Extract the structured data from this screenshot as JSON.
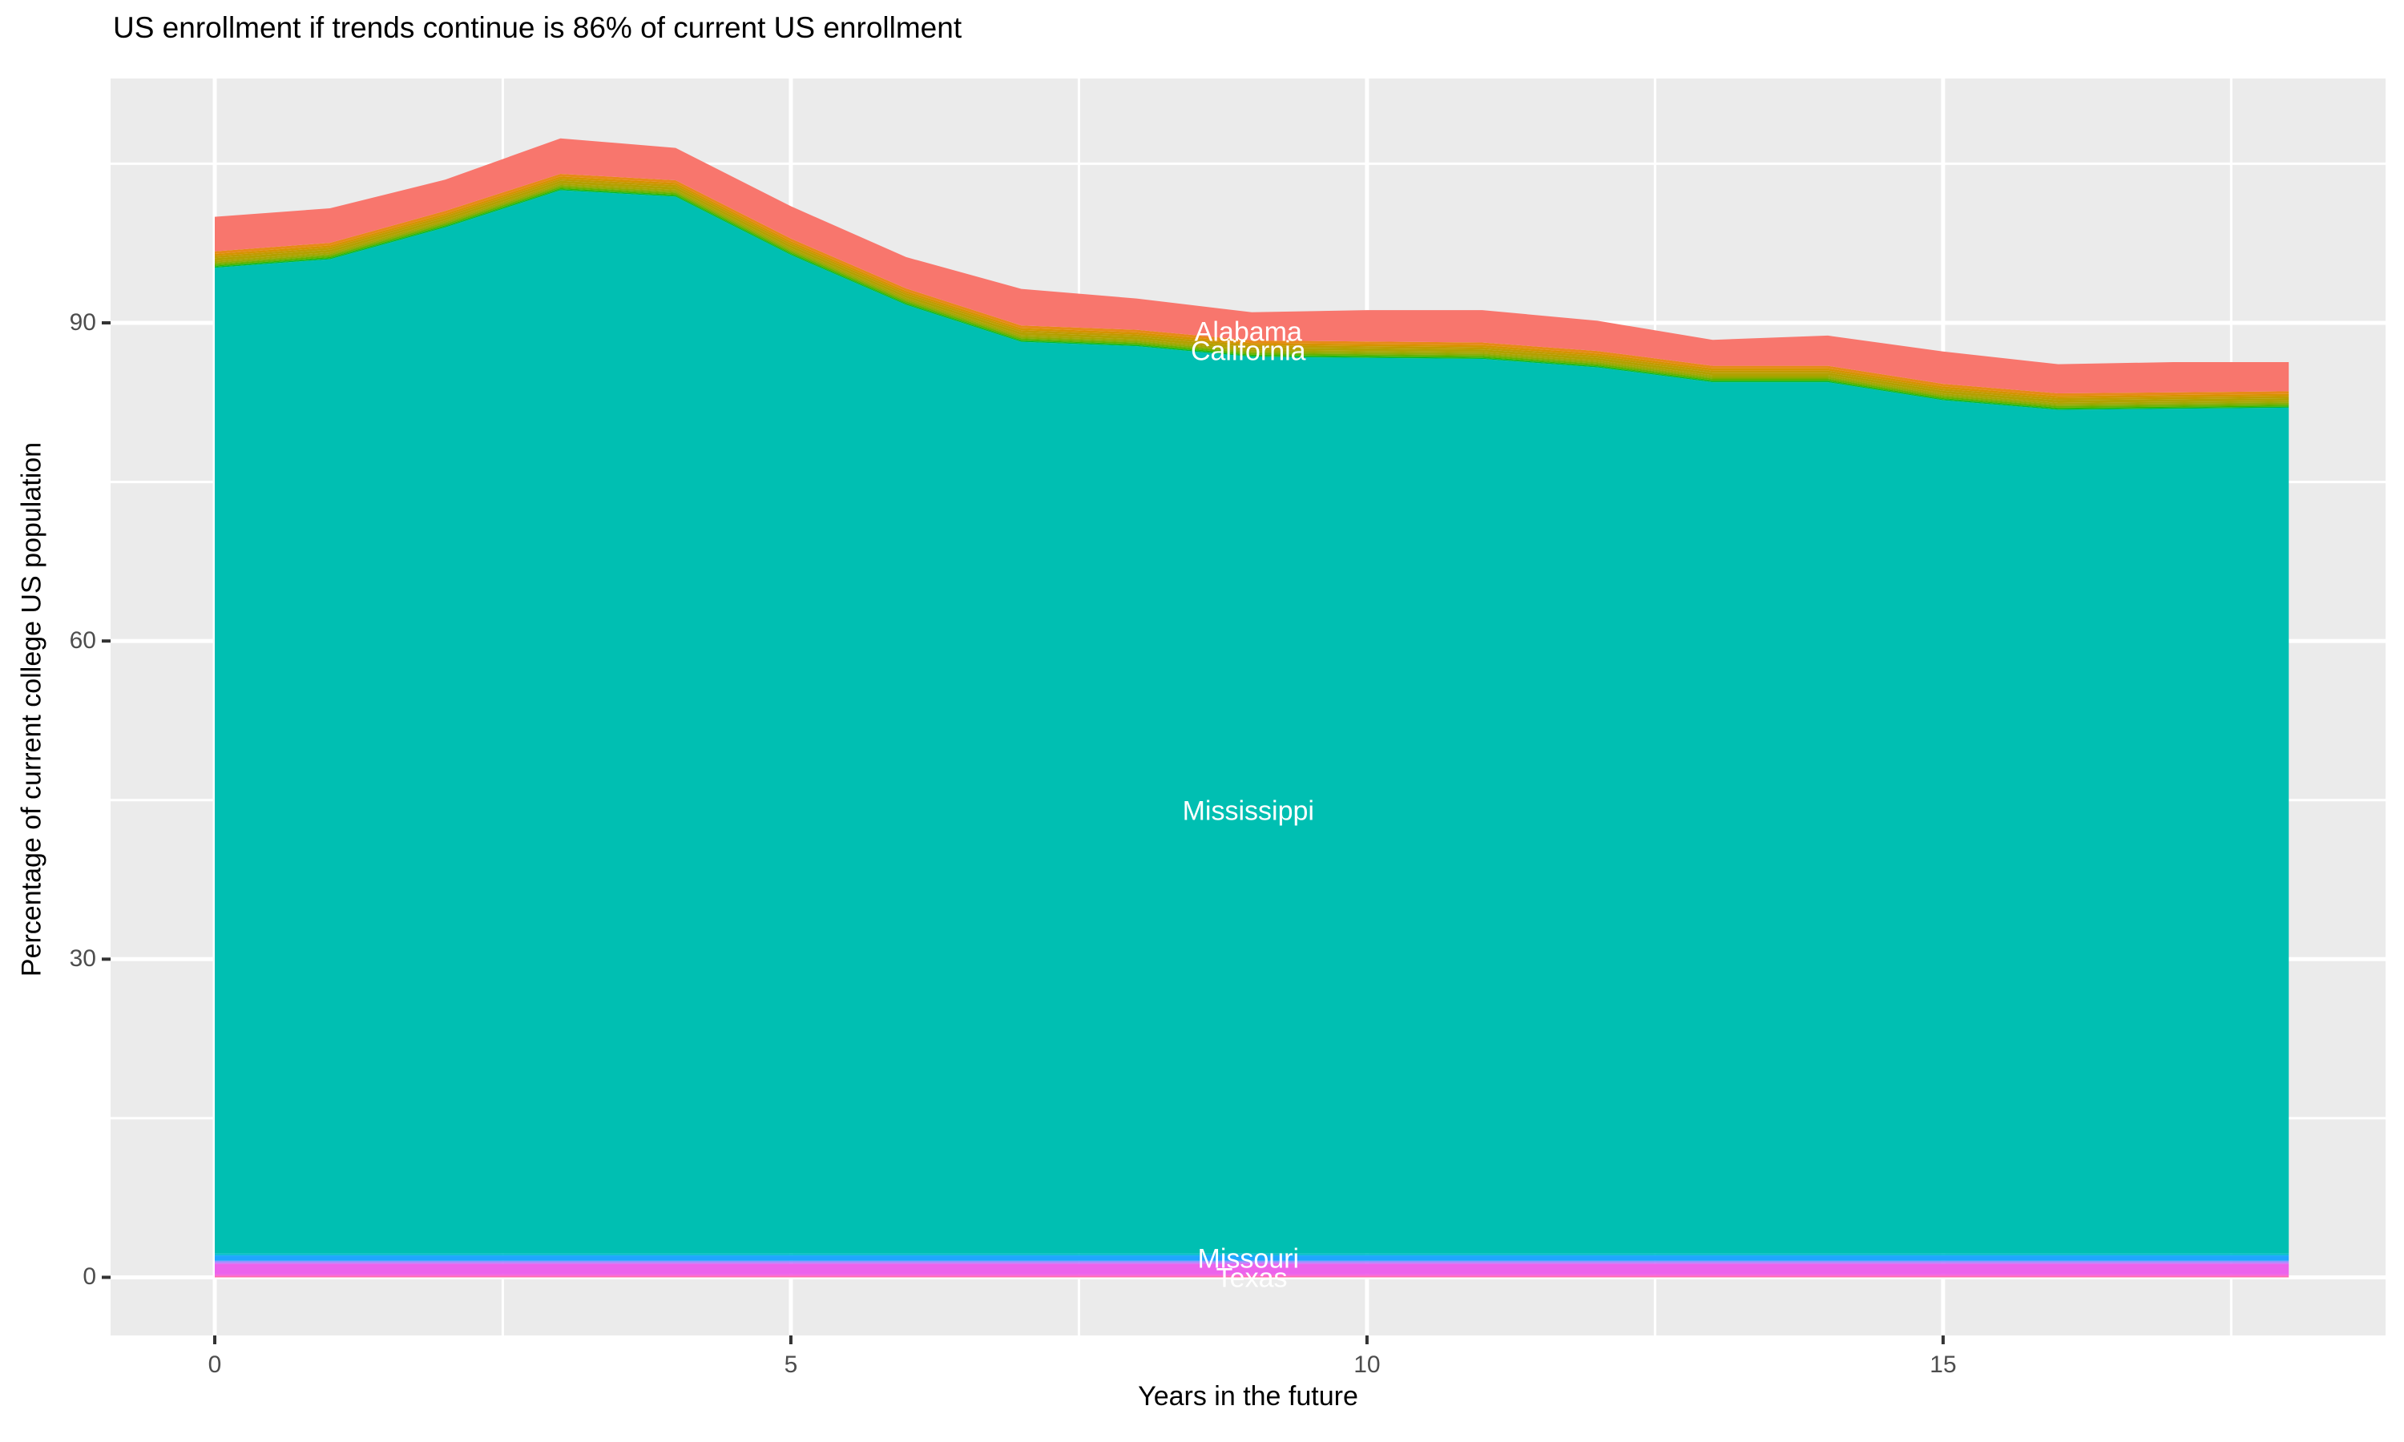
{
  "title": "US enrollment if trends continue is 86% of current US enrollment",
  "colors": {
    "background": "#ffffff",
    "panel_background": "#ebebeb",
    "gridline": "#ffffff",
    "tick_mark": "#333333",
    "tick_label": "#4d4d4d",
    "axis_title": "#000000",
    "title": "#000000",
    "annotation_text": "#ffffff"
  },
  "chart_data": {
    "type": "area",
    "stacked": true,
    "title": "US enrollment if trends continue is 86% of current US enrollment",
    "xlabel": "Years in the future",
    "ylabel": "Percentage of current college US population",
    "grid": true,
    "legend": "none",
    "x": [
      0,
      1,
      2,
      3,
      4,
      5,
      6,
      7,
      8,
      9,
      10,
      11,
      12,
      13,
      14,
      15,
      16,
      17,
      18
    ],
    "x_ticks": [
      0,
      5,
      10,
      15
    ],
    "y_ticks": [
      0,
      30,
      60,
      90
    ],
    "x_minor_ticks": [
      2.5,
      7.5,
      12.5,
      17.5
    ],
    "y_minor_ticks": [
      15,
      45,
      75,
      105
    ],
    "xlim": [
      -0.904,
      18.84
    ],
    "ylim": [
      -5.48,
      113.04
    ],
    "total_top_values": [
      100.0,
      100.8,
      103.5,
      107.4,
      106.5,
      101.0,
      96.2,
      93.2,
      92.3,
      91.0,
      91.2,
      91.2,
      90.2,
      88.4,
      88.8,
      87.3,
      86.1,
      86.3,
      86.3
    ],
    "series": [
      {
        "name": "other-states-pink-2",
        "color": "#FF6BAB",
        "labeled": false,
        "values": 0.12
      },
      {
        "name": "other-states-pink-1",
        "color": "#F863D6",
        "labeled": false,
        "values": 0.15
      },
      {
        "name": "Texas",
        "color": "#EC63EC",
        "labeled": true,
        "values": 1.0
      },
      {
        "name": "other-states-purple-2",
        "color": "#C97BFC",
        "labeled": false,
        "values": 0.15
      },
      {
        "name": "other-states-purple-1",
        "color": "#8F92FF",
        "labeled": false,
        "values": 0.15
      },
      {
        "name": "Missouri",
        "color": "#1FA6FF",
        "labeled": true,
        "values": 0.5
      },
      {
        "name": "other-states-cyan-2",
        "color": "#00BBDB",
        "labeled": false,
        "values": 0.1
      },
      {
        "name": "other-states-cyan-1",
        "color": "#00C0C6",
        "labeled": false,
        "values": 0.1
      },
      {
        "name": "Mississippi",
        "color": "#00BFB2",
        "labeled": true,
        "values": [
          92.93,
          93.73,
          96.73,
          100.23,
          99.63,
          94.13,
          89.43,
          85.93,
          85.53,
          84.53,
          84.43,
          84.33,
          83.53,
          82.13,
          82.13,
          80.43,
          79.53,
          79.63,
          79.73
        ]
      },
      {
        "name": "other-states-green-3",
        "color": "#00BA38",
        "labeled": false,
        "values": 0.1
      },
      {
        "name": "other-states-green-2",
        "color": "#32B600",
        "labeled": false,
        "values": 0.1
      },
      {
        "name": "other-states-green-1",
        "color": "#64B200",
        "labeled": false,
        "values": 0.15
      },
      {
        "name": "other-states-yellowgreen",
        "color": "#8CAB00",
        "labeled": false,
        "values": 0.15
      },
      {
        "name": "other-states-olive-2",
        "color": "#A4A500",
        "labeled": false,
        "values": 0.15
      },
      {
        "name": "California",
        "color": "#B3A000",
        "labeled": true,
        "values": 0.25
      },
      {
        "name": "other-states-olive-1",
        "color": "#C19A00",
        "labeled": false,
        "values": 0.2
      },
      {
        "name": "other-states-orange-2",
        "color": "#D59200",
        "labeled": false,
        "values": 0.2
      },
      {
        "name": "other-states-orange-1",
        "color": "#E78A17",
        "labeled": false,
        "values": 0.25
      },
      {
        "name": "Alabama",
        "color": "#F8766D",
        "labeled": true,
        "values": [
          3.25,
          3.25,
          2.95,
          3.35,
          3.05,
          3.05,
          2.95,
          3.45,
          2.95,
          2.65,
          2.95,
          3.05,
          2.85,
          2.45,
          2.85,
          3.05,
          2.75,
          2.85,
          2.75
        ]
      }
    ],
    "annotations": [
      {
        "text": "Alabama",
        "x": 8.97,
        "y": 89.1
      },
      {
        "text": "California",
        "x": 8.97,
        "y": 87.3
      },
      {
        "text": "Mississippi",
        "x": 8.97,
        "y": 43.9
      },
      {
        "text": "Missouri",
        "x": 8.97,
        "y": 1.7
      },
      {
        "text": "Texas",
        "x": 9.0,
        "y": -0.1
      }
    ]
  }
}
